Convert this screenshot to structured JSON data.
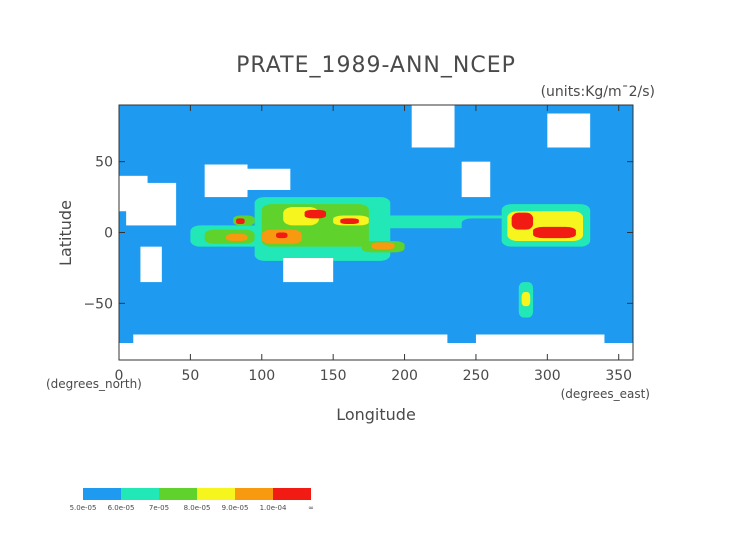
{
  "chart_data": {
    "type": "heatmap",
    "title": "PRATE_1989-ANN_NCEP",
    "units": "(units:Kg/m¯2/s)",
    "xlabel": "Longitude",
    "ylabel": "Latitude",
    "x_unit_label": "(degrees_east)",
    "y_unit_label": "(degrees_north)",
    "xlim": [
      0,
      360
    ],
    "ylim": [
      -90,
      90
    ],
    "x_ticks": [
      0,
      50,
      100,
      150,
      200,
      250,
      300,
      350
    ],
    "y_ticks": [
      -50,
      0,
      50
    ],
    "colorbar": {
      "labels": [
        "5.0e-05",
        "6.0e-05",
        "7e-05",
        "8.0e-05",
        "9.0e-05",
        "1.0e-04",
        "∞"
      ],
      "colors": [
        "#1e9bf0",
        "#22e8b8",
        "#5fd22b",
        "#f7f51e",
        "#f79a10",
        "#f21b14"
      ]
    },
    "background_color": "#1e9bf0",
    "missing_color": "#ffffff",
    "regions": [
      {
        "level": 0,
        "lon": [
          25,
          45
        ],
        "lat": [
          -10,
          10
        ]
      },
      {
        "level": 1,
        "lon": [
          50,
          100
        ],
        "lat": [
          -10,
          5
        ]
      },
      {
        "level": 2,
        "lon": [
          60,
          95
        ],
        "lat": [
          -8,
          2
        ]
      },
      {
        "level": 4,
        "lon": [
          75,
          90
        ],
        "lat": [
          -6,
          -1
        ]
      },
      {
        "level": 2,
        "lon": [
          80,
          95
        ],
        "lat": [
          5,
          12
        ]
      },
      {
        "level": 5,
        "lon": [
          82,
          88
        ],
        "lat": [
          6,
          10
        ]
      },
      {
        "level": 1,
        "lon": [
          95,
          190
        ],
        "lat": [
          -20,
          25
        ]
      },
      {
        "level": 2,
        "lon": [
          100,
          175
        ],
        "lat": [
          -10,
          20
        ]
      },
      {
        "level": 3,
        "lon": [
          115,
          140
        ],
        "lat": [
          5,
          18
        ]
      },
      {
        "level": 5,
        "lon": [
          130,
          145
        ],
        "lat": [
          10,
          16
        ]
      },
      {
        "level": 3,
        "lon": [
          150,
          175
        ],
        "lat": [
          5,
          12
        ]
      },
      {
        "level": 5,
        "lon": [
          155,
          168
        ],
        "lat": [
          6,
          10
        ]
      },
      {
        "level": 4,
        "lon": [
          100,
          128
        ],
        "lat": [
          -8,
          2
        ]
      },
      {
        "level": 5,
        "lon": [
          110,
          118
        ],
        "lat": [
          -4,
          0
        ]
      },
      {
        "level": 2,
        "lon": [
          170,
          200
        ],
        "lat": [
          -14,
          -6
        ]
      },
      {
        "level": 4,
        "lon": [
          177,
          193
        ],
        "lat": [
          -12,
          -7
        ]
      },
      {
        "level": 1,
        "lon": [
          175,
          280
        ],
        "lat": [
          3,
          12
        ]
      },
      {
        "level": 0,
        "lon": [
          240,
          280
        ],
        "lat": [
          0,
          10
        ]
      },
      {
        "level": 1,
        "lon": [
          268,
          330
        ],
        "lat": [
          -10,
          20
        ]
      },
      {
        "level": 3,
        "lon": [
          272,
          325
        ],
        "lat": [
          -6,
          15
        ]
      },
      {
        "level": 5,
        "lon": [
          275,
          290
        ],
        "lat": [
          2,
          14
        ]
      },
      {
        "level": 5,
        "lon": [
          290,
          320
        ],
        "lat": [
          -4,
          4
        ]
      },
      {
        "level": 1,
        "lon": [
          280,
          290
        ],
        "lat": [
          -60,
          -35
        ]
      },
      {
        "level": 3,
        "lon": [
          282,
          288
        ],
        "lat": [
          -52,
          -42
        ]
      }
    ],
    "missing_regions": [
      {
        "lon": [
          0,
          20
        ],
        "lat": [
          15,
          40
        ]
      },
      {
        "lon": [
          5,
          40
        ],
        "lat": [
          5,
          35
        ]
      },
      {
        "lon": [
          15,
          30
        ],
        "lat": [
          -35,
          -10
        ]
      },
      {
        "lon": [
          60,
          90
        ],
        "lat": [
          25,
          48
        ]
      },
      {
        "lon": [
          90,
          120
        ],
        "lat": [
          30,
          45
        ]
      },
      {
        "lon": [
          115,
          150
        ],
        "lat": [
          -35,
          -18
        ]
      },
      {
        "lon": [
          205,
          235
        ],
        "lat": [
          60,
          90
        ]
      },
      {
        "lon": [
          240,
          260
        ],
        "lat": [
          25,
          50
        ]
      },
      {
        "lon": [
          300,
          330
        ],
        "lat": [
          60,
          84
        ]
      },
      {
        "lon": [
          0,
          360
        ],
        "lat": [
          -90,
          -78
        ]
      },
      {
        "lon": [
          10,
          230
        ],
        "lat": [
          -82,
          -72
        ]
      },
      {
        "lon": [
          250,
          340
        ],
        "lat": [
          -80,
          -72
        ]
      }
    ]
  }
}
